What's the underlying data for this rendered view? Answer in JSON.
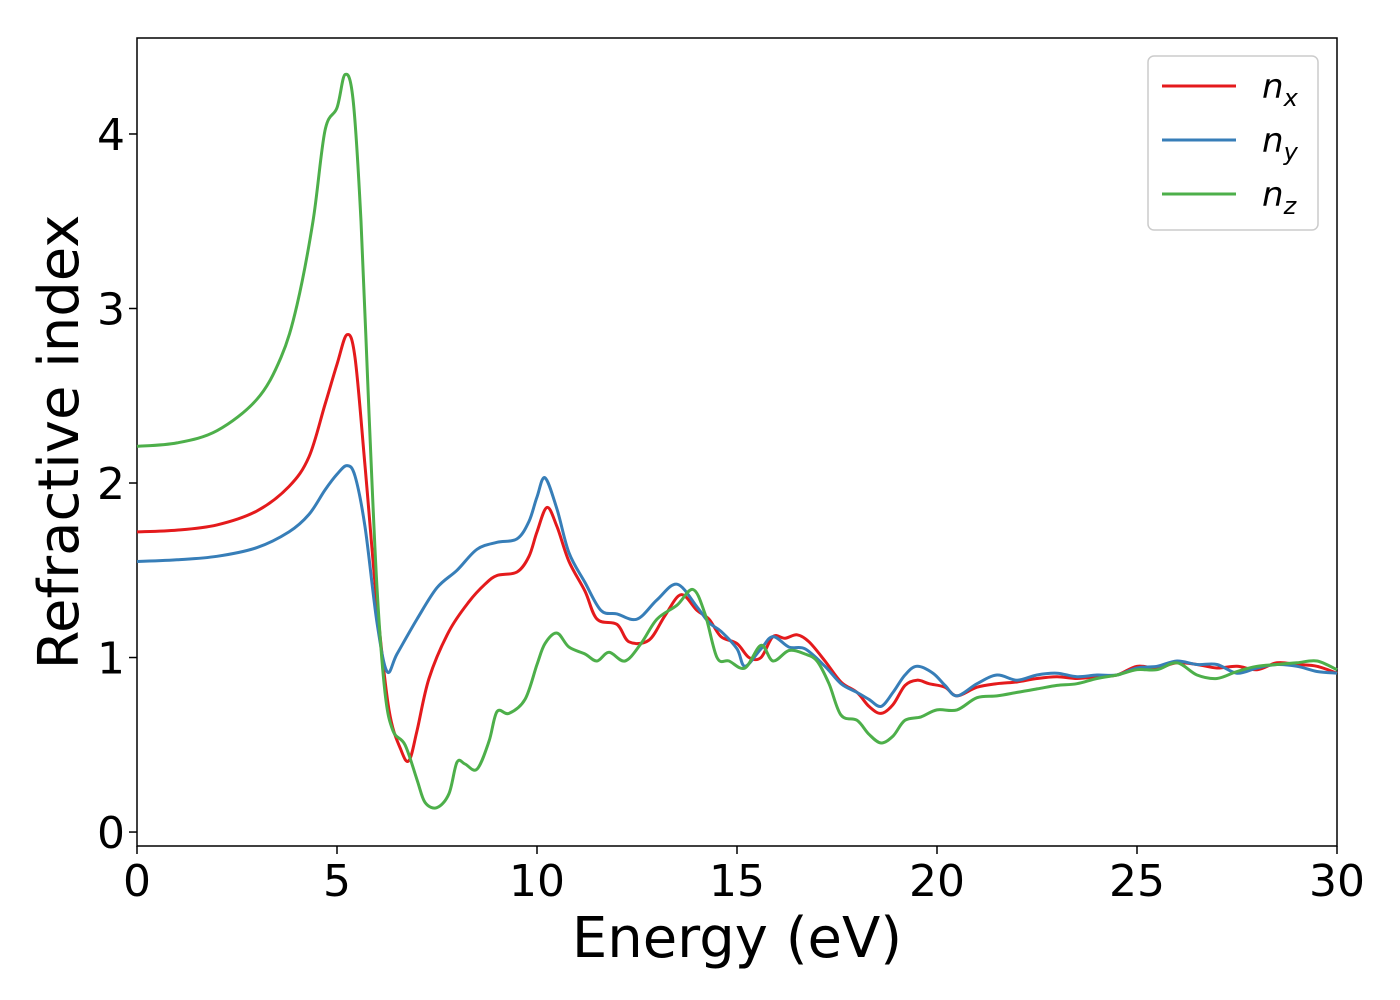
{
  "chart_data": {
    "type": "line",
    "title": "",
    "xlabel": "Energy (eV)",
    "ylabel": "Refractive index",
    "xlim": [
      0,
      30
    ],
    "ylim": [
      -0.08,
      4.55
    ],
    "xticks": [
      0,
      5,
      10,
      15,
      20,
      25,
      30
    ],
    "yticks": [
      0,
      1,
      2,
      3,
      4
    ],
    "grid": false,
    "legend_position": "top-right",
    "series": [
      {
        "name": "n",
        "subscript": "x",
        "color": "#e41a1c",
        "points": [
          [
            0,
            1.72
          ],
          [
            1,
            1.73
          ],
          [
            2,
            1.76
          ],
          [
            3,
            1.84
          ],
          [
            3.8,
            1.98
          ],
          [
            4.3,
            2.15
          ],
          [
            4.7,
            2.45
          ],
          [
            5.0,
            2.68
          ],
          [
            5.25,
            2.85
          ],
          [
            5.45,
            2.72
          ],
          [
            5.7,
            2.1
          ],
          [
            6.0,
            1.3
          ],
          [
            6.3,
            0.7
          ],
          [
            6.6,
            0.47
          ],
          [
            6.8,
            0.41
          ],
          [
            7.0,
            0.58
          ],
          [
            7.3,
            0.88
          ],
          [
            7.8,
            1.15
          ],
          [
            8.3,
            1.32
          ],
          [
            8.7,
            1.42
          ],
          [
            9.0,
            1.47
          ],
          [
            9.5,
            1.49
          ],
          [
            9.8,
            1.58
          ],
          [
            10.0,
            1.72
          ],
          [
            10.25,
            1.86
          ],
          [
            10.5,
            1.75
          ],
          [
            10.8,
            1.55
          ],
          [
            11.2,
            1.38
          ],
          [
            11.5,
            1.22
          ],
          [
            12.0,
            1.19
          ],
          [
            12.3,
            1.09
          ],
          [
            12.8,
            1.1
          ],
          [
            13.2,
            1.24
          ],
          [
            13.6,
            1.36
          ],
          [
            14.0,
            1.27
          ],
          [
            14.3,
            1.22
          ],
          [
            14.6,
            1.12
          ],
          [
            15.0,
            1.08
          ],
          [
            15.3,
            1.0
          ],
          [
            15.6,
            1.0
          ],
          [
            15.9,
            1.12
          ],
          [
            16.2,
            1.11
          ],
          [
            16.5,
            1.13
          ],
          [
            16.8,
            1.09
          ],
          [
            17.2,
            0.98
          ],
          [
            17.6,
            0.86
          ],
          [
            18.0,
            0.8
          ],
          [
            18.3,
            0.72
          ],
          [
            18.6,
            0.68
          ],
          [
            18.9,
            0.73
          ],
          [
            19.2,
            0.84
          ],
          [
            19.5,
            0.87
          ],
          [
            19.8,
            0.85
          ],
          [
            20.2,
            0.83
          ],
          [
            20.5,
            0.78
          ],
          [
            21.0,
            0.83
          ],
          [
            21.5,
            0.85
          ],
          [
            22.0,
            0.86
          ],
          [
            22.5,
            0.88
          ],
          [
            23.0,
            0.89
          ],
          [
            23.5,
            0.88
          ],
          [
            24.0,
            0.89
          ],
          [
            24.5,
            0.9
          ],
          [
            25.0,
            0.95
          ],
          [
            25.5,
            0.94
          ],
          [
            26.0,
            0.97
          ],
          [
            26.5,
            0.96
          ],
          [
            27.0,
            0.94
          ],
          [
            27.5,
            0.95
          ],
          [
            28.0,
            0.93
          ],
          [
            28.5,
            0.97
          ],
          [
            29.0,
            0.96
          ],
          [
            29.5,
            0.95
          ],
          [
            30.0,
            0.91
          ]
        ]
      },
      {
        "name": "n",
        "subscript": "y",
        "color": "#377eb8",
        "points": [
          [
            0,
            1.55
          ],
          [
            1,
            1.56
          ],
          [
            2,
            1.58
          ],
          [
            3,
            1.63
          ],
          [
            3.8,
            1.72
          ],
          [
            4.3,
            1.82
          ],
          [
            4.7,
            1.96
          ],
          [
            5.0,
            2.05
          ],
          [
            5.25,
            2.1
          ],
          [
            5.45,
            2.04
          ],
          [
            5.7,
            1.75
          ],
          [
            6.0,
            1.2
          ],
          [
            6.25,
            0.92
          ],
          [
            6.5,
            1.02
          ],
          [
            7.0,
            1.22
          ],
          [
            7.5,
            1.4
          ],
          [
            8.0,
            1.5
          ],
          [
            8.5,
            1.62
          ],
          [
            9.0,
            1.66
          ],
          [
            9.5,
            1.68
          ],
          [
            9.8,
            1.78
          ],
          [
            10.0,
            1.92
          ],
          [
            10.2,
            2.03
          ],
          [
            10.5,
            1.85
          ],
          [
            10.8,
            1.6
          ],
          [
            11.2,
            1.43
          ],
          [
            11.6,
            1.27
          ],
          [
            12.0,
            1.25
          ],
          [
            12.5,
            1.22
          ],
          [
            13.0,
            1.33
          ],
          [
            13.5,
            1.42
          ],
          [
            14.0,
            1.29
          ],
          [
            14.3,
            1.2
          ],
          [
            14.6,
            1.15
          ],
          [
            15.0,
            1.05
          ],
          [
            15.2,
            0.95
          ],
          [
            15.6,
            1.05
          ],
          [
            15.9,
            1.12
          ],
          [
            16.3,
            1.06
          ],
          [
            16.7,
            1.05
          ],
          [
            17.2,
            0.95
          ],
          [
            17.6,
            0.85
          ],
          [
            18.0,
            0.8
          ],
          [
            18.3,
            0.76
          ],
          [
            18.6,
            0.72
          ],
          [
            18.9,
            0.8
          ],
          [
            19.2,
            0.9
          ],
          [
            19.5,
            0.95
          ],
          [
            19.9,
            0.91
          ],
          [
            20.2,
            0.84
          ],
          [
            20.5,
            0.78
          ],
          [
            21.0,
            0.85
          ],
          [
            21.5,
            0.9
          ],
          [
            22.0,
            0.87
          ],
          [
            22.5,
            0.9
          ],
          [
            23.0,
            0.91
          ],
          [
            23.5,
            0.89
          ],
          [
            24.0,
            0.9
          ],
          [
            24.5,
            0.9
          ],
          [
            25.0,
            0.94
          ],
          [
            25.5,
            0.95
          ],
          [
            26.0,
            0.98
          ],
          [
            26.5,
            0.96
          ],
          [
            27.0,
            0.96
          ],
          [
            27.5,
            0.91
          ],
          [
            28.0,
            0.94
          ],
          [
            28.5,
            0.96
          ],
          [
            29.0,
            0.95
          ],
          [
            29.5,
            0.92
          ],
          [
            30.0,
            0.91
          ]
        ]
      },
      {
        "name": "n",
        "subscript": "z",
        "color": "#4daf4a",
        "points": [
          [
            0,
            2.21
          ],
          [
            1,
            2.23
          ],
          [
            2,
            2.3
          ],
          [
            3,
            2.48
          ],
          [
            3.6,
            2.72
          ],
          [
            4.0,
            3.02
          ],
          [
            4.4,
            3.5
          ],
          [
            4.7,
            4.02
          ],
          [
            5.0,
            4.15
          ],
          [
            5.2,
            4.34
          ],
          [
            5.4,
            4.2
          ],
          [
            5.6,
            3.5
          ],
          [
            5.8,
            2.4
          ],
          [
            6.0,
            1.4
          ],
          [
            6.2,
            0.8
          ],
          [
            6.4,
            0.58
          ],
          [
            6.7,
            0.5
          ],
          [
            7.0,
            0.3
          ],
          [
            7.2,
            0.17
          ],
          [
            7.5,
            0.14
          ],
          [
            7.8,
            0.22
          ],
          [
            8.0,
            0.4
          ],
          [
            8.2,
            0.39
          ],
          [
            8.5,
            0.36
          ],
          [
            8.8,
            0.52
          ],
          [
            9.0,
            0.69
          ],
          [
            9.3,
            0.68
          ],
          [
            9.7,
            0.76
          ],
          [
            10.0,
            0.96
          ],
          [
            10.2,
            1.08
          ],
          [
            10.5,
            1.14
          ],
          [
            10.8,
            1.06
          ],
          [
            11.2,
            1.02
          ],
          [
            11.5,
            0.98
          ],
          [
            11.8,
            1.03
          ],
          [
            12.2,
            0.98
          ],
          [
            12.6,
            1.08
          ],
          [
            13.0,
            1.22
          ],
          [
            13.5,
            1.3
          ],
          [
            13.9,
            1.39
          ],
          [
            14.2,
            1.25
          ],
          [
            14.5,
            1.0
          ],
          [
            14.8,
            0.98
          ],
          [
            15.2,
            0.94
          ],
          [
            15.6,
            1.07
          ],
          [
            15.9,
            0.98
          ],
          [
            16.3,
            1.04
          ],
          [
            16.7,
            1.02
          ],
          [
            17.0,
            0.98
          ],
          [
            17.3,
            0.85
          ],
          [
            17.6,
            0.67
          ],
          [
            18.0,
            0.64
          ],
          [
            18.3,
            0.56
          ],
          [
            18.6,
            0.51
          ],
          [
            18.9,
            0.55
          ],
          [
            19.2,
            0.64
          ],
          [
            19.6,
            0.66
          ],
          [
            20.0,
            0.7
          ],
          [
            20.5,
            0.7
          ],
          [
            21.0,
            0.77
          ],
          [
            21.5,
            0.78
          ],
          [
            22.0,
            0.8
          ],
          [
            22.5,
            0.82
          ],
          [
            23.0,
            0.84
          ],
          [
            23.5,
            0.85
          ],
          [
            24.0,
            0.88
          ],
          [
            24.5,
            0.9
          ],
          [
            25.0,
            0.93
          ],
          [
            25.5,
            0.93
          ],
          [
            26.0,
            0.97
          ],
          [
            26.5,
            0.9
          ],
          [
            27.0,
            0.88
          ],
          [
            27.5,
            0.92
          ],
          [
            28.0,
            0.95
          ],
          [
            28.5,
            0.96
          ],
          [
            29.0,
            0.97
          ],
          [
            29.5,
            0.98
          ],
          [
            30.0,
            0.93
          ]
        ]
      }
    ]
  }
}
